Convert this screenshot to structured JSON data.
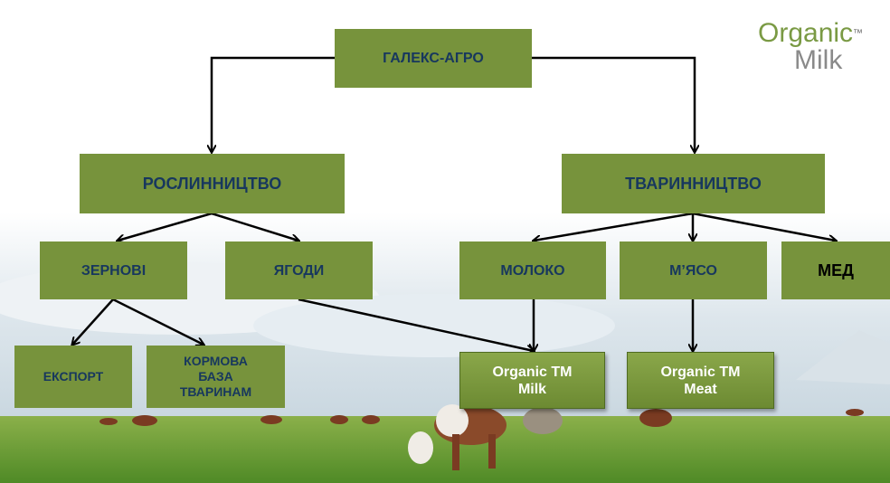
{
  "logo": {
    "word1": "Organic",
    "tm": "™",
    "word2": "Milk"
  },
  "nodes": [
    {
      "label": "ГАЛЕКС-АГРО"
    },
    {
      "label": "РОСЛИННИЦТВО"
    },
    {
      "label": "ТВАРИННИЦТВО"
    },
    {
      "label": "ЗЕРНОВІ"
    },
    {
      "label": "ЯГОДИ"
    },
    {
      "label": "МОЛОКО"
    },
    {
      "label": "М’ЯСО"
    },
    {
      "label": "МЕД"
    },
    {
      "label": "ЕКСПОРТ"
    },
    {
      "lines": [
        "КОРМОВА",
        "БАЗА",
        "ТВАРИНАМ"
      ]
    },
    {
      "lines": [
        "Organic TM",
        "Milk"
      ]
    },
    {
      "lines": [
        "Organic TM",
        "Meat"
      ]
    }
  ]
}
